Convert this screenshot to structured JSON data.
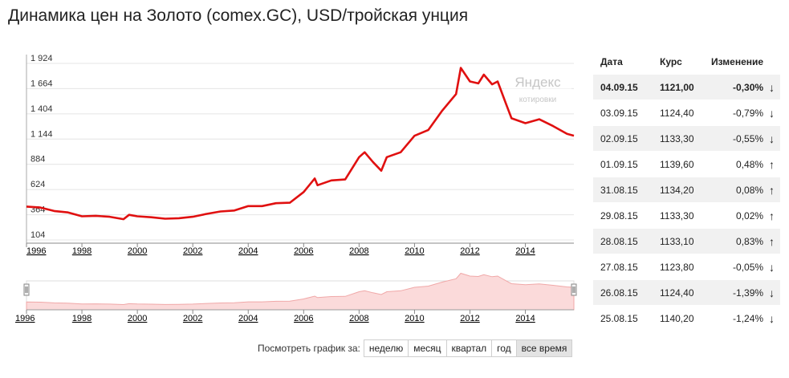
{
  "title": "Динамика цен на Золото (comex.GC), USD/тройская унция",
  "watermark": {
    "line1": "Яндекс",
    "line2": "котировки"
  },
  "chart_data": {
    "type": "line",
    "title": "Динамика цен на Золото (comex.GC), USD/тройская унция",
    "ylim": [
      104,
      1924
    ],
    "yticks": [
      "1 924",
      "1 664",
      "1 404",
      "1 144",
      "884",
      "624",
      "364",
      "104"
    ],
    "xlim": [
      1996,
      2015.75
    ],
    "xticks": [
      "1996",
      "1998",
      "2000",
      "2002",
      "2004",
      "2006",
      "2008",
      "2010",
      "2012",
      "2014"
    ],
    "series": [
      {
        "color": "#e01010",
        "x": [
          1996.0,
          1996.5,
          1997.0,
          1997.5,
          1998.0,
          1998.5,
          1999.0,
          1999.5,
          1999.7,
          2000.0,
          2000.5,
          2001.0,
          2001.5,
          2002.0,
          2002.5,
          2003.0,
          2003.5,
          2004.0,
          2004.5,
          2005.0,
          2005.5,
          2006.0,
          2006.4,
          2006.5,
          2007.0,
          2007.5,
          2008.0,
          2008.2,
          2008.5,
          2008.8,
          2009.0,
          2009.5,
          2010.0,
          2010.5,
          2011.0,
          2011.5,
          2011.67,
          2012.0,
          2012.3,
          2012.5,
          2012.8,
          2013.0,
          2013.3,
          2013.5,
          2014.0,
          2014.5,
          2015.0,
          2015.5,
          2015.75
        ],
        "y": [
          390,
          380,
          345,
          330,
          290,
          295,
          285,
          260,
          305,
          290,
          280,
          265,
          270,
          285,
          315,
          340,
          350,
          395,
          395,
          425,
          430,
          540,
          680,
          610,
          660,
          670,
          900,
          950,
          850,
          760,
          900,
          950,
          1120,
          1180,
          1380,
          1550,
          1820,
          1680,
          1660,
          1750,
          1650,
          1680,
          1450,
          1300,
          1250,
          1290,
          1220,
          1140,
          1121
        ]
      }
    ]
  },
  "navigator": {
    "xticks": [
      "1996",
      "1998",
      "2000",
      "2002",
      "2004",
      "2006",
      "2008",
      "2010",
      "2012",
      "2014"
    ]
  },
  "period": {
    "label": "Посмотреть график за:",
    "buttons": [
      {
        "label": "неделю",
        "active": false
      },
      {
        "label": "месяц",
        "active": false
      },
      {
        "label": "квартал",
        "active": false
      },
      {
        "label": "год",
        "active": false
      },
      {
        "label": "все время",
        "active": true
      }
    ]
  },
  "table": {
    "headers": {
      "date": "Дата",
      "rate": "Курс",
      "change": "Изменение"
    },
    "rows": [
      {
        "date": "04.09.15",
        "rate": "1121,00",
        "change": "-0,30%",
        "dir": "down",
        "arrow": "↓",
        "bold": true
      },
      {
        "date": "03.09.15",
        "rate": "1124,40",
        "change": "-0,79%",
        "dir": "down",
        "arrow": "↓",
        "bold": false
      },
      {
        "date": "02.09.15",
        "rate": "1133,30",
        "change": "-0,55%",
        "dir": "down",
        "arrow": "↓",
        "bold": false
      },
      {
        "date": "01.09.15",
        "rate": "1139,60",
        "change": "0,48%",
        "dir": "up",
        "arrow": "↑",
        "bold": false
      },
      {
        "date": "31.08.15",
        "rate": "1134,20",
        "change": "0,08%",
        "dir": "up",
        "arrow": "↑",
        "bold": false
      },
      {
        "date": "29.08.15",
        "rate": "1133,30",
        "change": "0,02%",
        "dir": "up",
        "arrow": "↑",
        "bold": false
      },
      {
        "date": "28.08.15",
        "rate": "1133,10",
        "change": "0,83%",
        "dir": "up",
        "arrow": "↑",
        "bold": false
      },
      {
        "date": "27.08.15",
        "rate": "1123,80",
        "change": "-0,05%",
        "dir": "down",
        "arrow": "↓",
        "bold": false
      },
      {
        "date": "26.08.15",
        "rate": "1124,40",
        "change": "-1,39%",
        "dir": "down",
        "arrow": "↓",
        "bold": false
      },
      {
        "date": "25.08.15",
        "rate": "1140,20",
        "change": "-1,24%",
        "dir": "down",
        "arrow": "↓",
        "bold": false
      }
    ]
  }
}
